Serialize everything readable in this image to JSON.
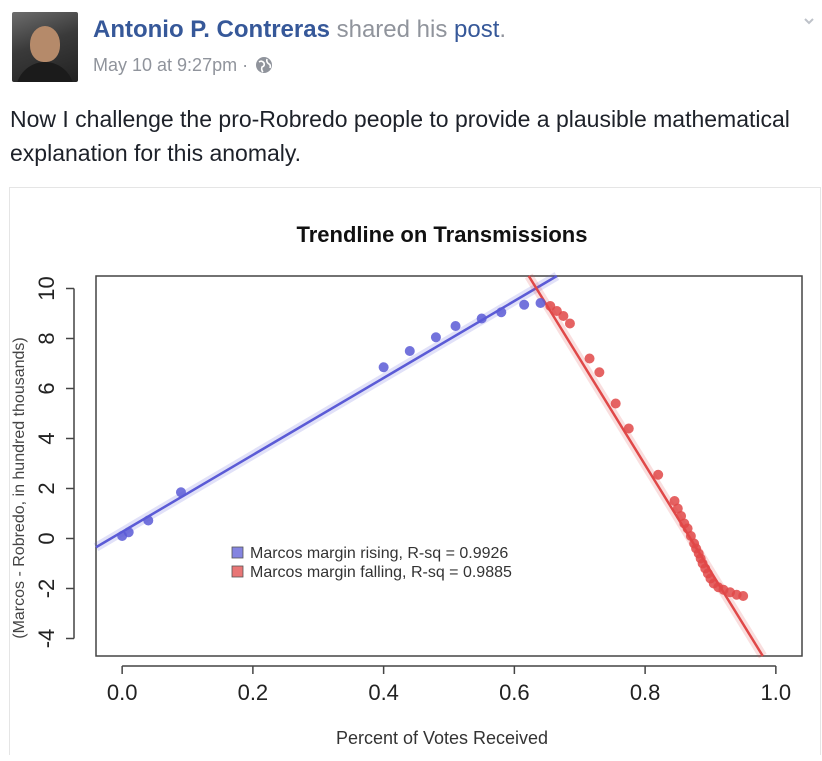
{
  "post": {
    "author": "Antonio P. Contreras",
    "shared_text": "shared his",
    "post_link": "post",
    "period": ".",
    "timestamp": "May 10 at 9:27pm",
    "separator": "·",
    "audience_icon": "globe-icon",
    "menu_icon": "chevron-down-icon",
    "text": "Now I challenge the pro-Robredo people to provide a plausible mathematical explanation for this anomaly."
  },
  "colors": {
    "link": "#365899",
    "meta": "#90949c",
    "rising": "#5b5bd6",
    "falling": "#e04848"
  },
  "chart_data": {
    "type": "scatter",
    "title": "Trendline on Transmissions",
    "xlabel": "Percent of Votes Received",
    "ylabel": "(Marcos - Robredo, in hundred thousands)",
    "xlim": [
      -0.04,
      1.04
    ],
    "ylim": [
      -4.7,
      10.5
    ],
    "xticks": [
      "0.0",
      "0.2",
      "0.4",
      "0.6",
      "0.8",
      "1.0"
    ],
    "yticks": [
      "-4",
      "-2",
      "0",
      "2",
      "4",
      "6",
      "8",
      "10"
    ],
    "legend_position": "center-left",
    "series": [
      {
        "name": "Marcos margin rising, R-sq = 0.9926",
        "color": "#5b5bd6",
        "points": [
          [
            0.0,
            0.1
          ],
          [
            0.01,
            0.25
          ],
          [
            0.04,
            0.72
          ],
          [
            0.09,
            1.85
          ],
          [
            0.4,
            6.85
          ],
          [
            0.44,
            7.5
          ],
          [
            0.48,
            8.05
          ],
          [
            0.51,
            8.5
          ],
          [
            0.55,
            8.8
          ],
          [
            0.58,
            9.05
          ],
          [
            0.615,
            9.35
          ],
          [
            0.64,
            9.42
          ]
        ],
        "trend": [
          [
            -0.04,
            -0.35
          ],
          [
            0.665,
            10.5
          ]
        ]
      },
      {
        "name": "Marcos margin falling, R-sq = 0.9885",
        "color": "#e04848",
        "points": [
          [
            0.655,
            9.3
          ],
          [
            0.665,
            9.1
          ],
          [
            0.675,
            8.9
          ],
          [
            0.685,
            8.6
          ],
          [
            0.715,
            7.2
          ],
          [
            0.73,
            6.65
          ],
          [
            0.755,
            5.4
          ],
          [
            0.775,
            4.4
          ],
          [
            0.82,
            2.55
          ],
          [
            0.845,
            1.5
          ],
          [
            0.85,
            1.2
          ],
          [
            0.855,
            0.9
          ],
          [
            0.86,
            0.6
          ],
          [
            0.865,
            0.4
          ],
          [
            0.87,
            0.1
          ],
          [
            0.875,
            -0.2
          ],
          [
            0.878,
            -0.4
          ],
          [
            0.882,
            -0.6
          ],
          [
            0.885,
            -0.8
          ],
          [
            0.888,
            -1.0
          ],
          [
            0.892,
            -1.2
          ],
          [
            0.896,
            -1.4
          ],
          [
            0.9,
            -1.6
          ],
          [
            0.905,
            -1.8
          ],
          [
            0.912,
            -1.95
          ],
          [
            0.92,
            -2.05
          ],
          [
            0.93,
            -2.15
          ],
          [
            0.94,
            -2.25
          ],
          [
            0.95,
            -2.3
          ]
        ],
        "trend": [
          [
            0.622,
            10.5
          ],
          [
            0.98,
            -4.7
          ]
        ]
      }
    ]
  }
}
